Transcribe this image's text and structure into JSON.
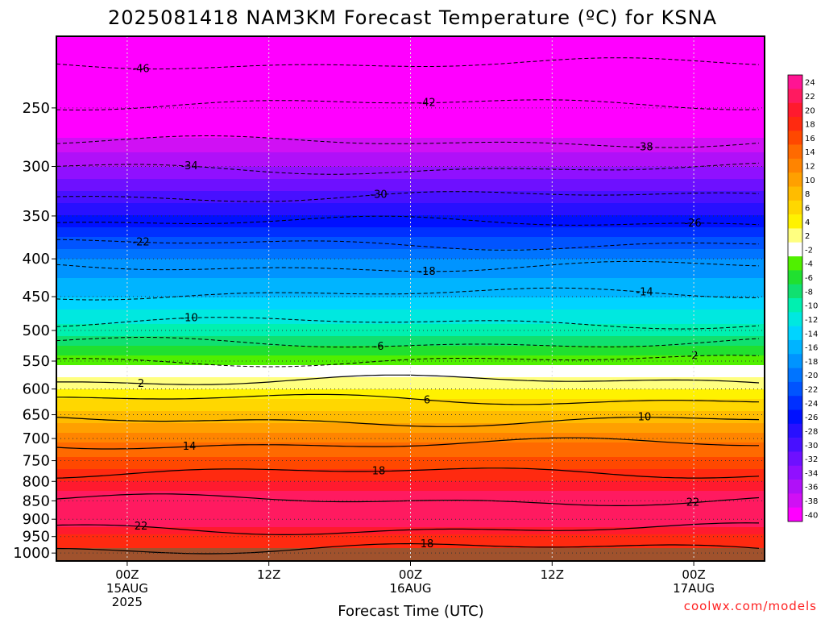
{
  "chart_data": {
    "type": "heatmap",
    "title": "2025081418 NAM3KM Forecast Temperature (ºC) for KSNA",
    "xlabel": "Forecast Time (UTC)",
    "ylabel": "",
    "x_ticks": [
      {
        "hours": 6,
        "line1": "00Z",
        "line2": "15AUG",
        "line3": "2025"
      },
      {
        "hours": 18,
        "line1": "12Z",
        "line2": "",
        "line3": ""
      },
      {
        "hours": 30,
        "line1": "00Z",
        "line2": "16AUG",
        "line3": ""
      },
      {
        "hours": 42,
        "line1": "12Z",
        "line2": "",
        "line3": ""
      },
      {
        "hours": 54,
        "line1": "00Z",
        "line2": "17AUG",
        "line3": ""
      }
    ],
    "xlim_hours": [
      0,
      60
    ],
    "y_ticks": [
      250,
      300,
      350,
      400,
      450,
      500,
      550,
      600,
      650,
      700,
      750,
      800,
      850,
      900,
      950,
      1000
    ],
    "ylim": [
      200,
      1025
    ],
    "y_scale": "log",
    "colorbar": {
      "labels": [
        "24",
        "22",
        "20",
        "18",
        "16",
        "14",
        "12",
        "10",
        "8",
        "6",
        "4",
        "2",
        "-2",
        "-4",
        "-6",
        "-8",
        "-10",
        "-12",
        "-14",
        "-16",
        "-18",
        "-20",
        "-22",
        "-24",
        "-26",
        "-28",
        "-30",
        "-32",
        "-34",
        "-36",
        "-38",
        "-40"
      ],
      "colors": [
        "#ff1493",
        "#ff1a60",
        "#ff1a2e",
        "#ff2a10",
        "#ff4800",
        "#ff6a00",
        "#ff8400",
        "#ffa000",
        "#ffbc00",
        "#ffd700",
        "#fff200",
        "#ffff80",
        "#ffffff",
        "#50f000",
        "#20e030",
        "#10e070",
        "#00f0b0",
        "#00e8e0",
        "#00d4ff",
        "#00b4ff",
        "#0094ff",
        "#0074ff",
        "#0054ff",
        "#0030ff",
        "#0010ff",
        "#2810ff",
        "#4810ff",
        "#6e10ff",
        "#9010ff",
        "#b010f8",
        "#d010f4",
        "#ff00ff"
      ]
    },
    "profile": [
      {
        "p": 200,
        "t": -56
      },
      {
        "p": 220,
        "t": -49
      },
      {
        "p": 250,
        "t": -42
      },
      {
        "p": 275,
        "t": -38
      },
      {
        "p": 300,
        "t": -34
      },
      {
        "p": 325,
        "t": -30
      },
      {
        "p": 350,
        "t": -26
      },
      {
        "p": 375,
        "t": -22
      },
      {
        "p": 400,
        "t": -18
      },
      {
        "p": 450,
        "t": -14
      },
      {
        "p": 490,
        "t": -10
      },
      {
        "p": 525,
        "t": -6
      },
      {
        "p": 555,
        "t": -2
      },
      {
        "p": 565,
        "t": 0
      },
      {
        "p": 580,
        "t": 2
      },
      {
        "p": 620,
        "t": 6
      },
      {
        "p": 665,
        "t": 10
      },
      {
        "p": 710,
        "t": 14
      },
      {
        "p": 770,
        "t": 18
      },
      {
        "p": 825,
        "t": 22
      },
      {
        "p": 880,
        "t": 24
      },
      {
        "p": 925,
        "t": 22
      },
      {
        "p": 965,
        "t": 18
      },
      {
        "p": 1000,
        "t": 18
      },
      {
        "p": 1025,
        "t": 19
      }
    ],
    "contours": [
      {
        "label": "-46",
        "p": 218,
        "solid": false
      },
      {
        "label": "-42",
        "p": 247,
        "solid": false
      },
      {
        "label": "-38",
        "p": 278,
        "solid": false
      },
      {
        "label": "-34",
        "p": 302,
        "solid": false
      },
      {
        "label": "-30",
        "p": 329,
        "solid": false
      },
      {
        "label": "-26",
        "p": 357,
        "solid": false
      },
      {
        "label": "-22",
        "p": 382,
        "solid": false
      },
      {
        "label": "-18",
        "p": 410,
        "solid": false
      },
      {
        "label": "-14",
        "p": 446,
        "solid": false
      },
      {
        "label": "-10",
        "p": 488,
        "solid": false
      },
      {
        "label": "-6",
        "p": 520,
        "solid": false
      },
      {
        "label": "-2",
        "p": 549,
        "solid": false
      },
      {
        "label": "2",
        "p": 585,
        "solid": true
      },
      {
        "label": "6",
        "p": 620,
        "solid": true
      },
      {
        "label": "10",
        "p": 662,
        "solid": true
      },
      {
        "label": "14",
        "p": 712,
        "solid": true
      },
      {
        "label": "18",
        "p": 778,
        "solid": true
      },
      {
        "label": "22",
        "p": 848,
        "solid": true
      },
      {
        "label": "22",
        "p": 928,
        "solid": true
      },
      {
        "label": "18",
        "p": 985,
        "solid": true
      }
    ],
    "ground_color": "#a0522d"
  },
  "watermark": "coolwx.com/models"
}
